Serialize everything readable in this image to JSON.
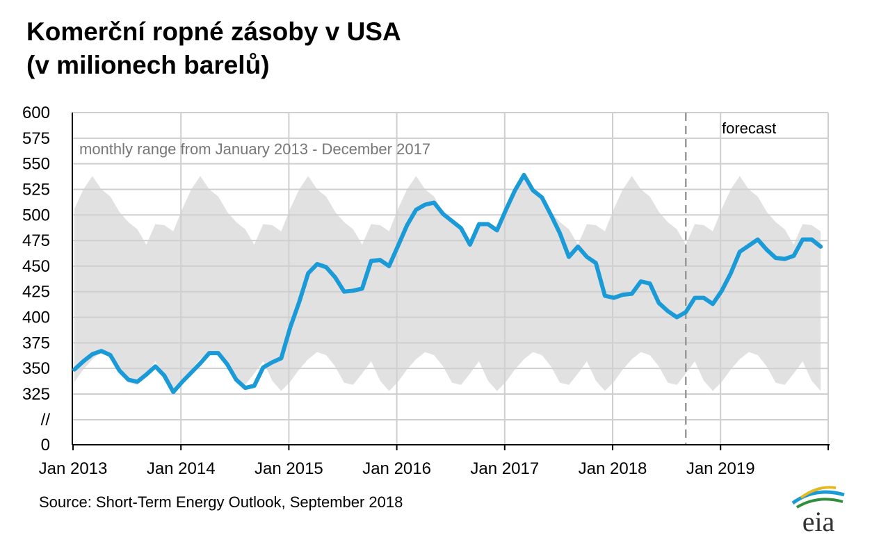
{
  "title_line1": "Komerční ropné zásoby v USA",
  "title_line2": "(v milionech barelů)",
  "source": "Source: Short-Term Energy Outlook, September 2018",
  "logo_text": "eia",
  "colors": {
    "line": "#1a9ad6",
    "band": "#e1e1e1",
    "grid": "#cfcfcf",
    "forecast_divider": "#999999"
  },
  "chart_data": {
    "type": "line",
    "y_tick_labels": [
      "600",
      "575",
      "550",
      "525",
      "500",
      "475",
      "450",
      "425",
      "400",
      "375",
      "350",
      "325",
      "//",
      "0"
    ],
    "y_ticks": [
      600,
      575,
      550,
      525,
      500,
      475,
      450,
      425,
      400,
      375,
      350,
      325
    ],
    "ylim": [
      325,
      600
    ],
    "axis_break_label": "//",
    "axis_zero_label": "0",
    "x_tick_labels": [
      "Jan 2013",
      "Jan 2014",
      "Jan 2015",
      "Jan 2016",
      "Jan 2017",
      "Jan 2018",
      "Jan 2019"
    ],
    "band_label": "monthly range from January 2013 - December 2017",
    "forecast_label": "forecast",
    "forecast_start": "2018-09",
    "band": {
      "x_month": [
        "Jan",
        "Feb",
        "Mar",
        "Apr",
        "May",
        "Jun",
        "Jul",
        "Aug",
        "Sep",
        "Oct",
        "Nov",
        "Dec"
      ],
      "max": [
        506,
        525,
        538,
        525,
        518,
        503,
        493,
        486,
        471,
        491,
        490,
        484
      ],
      "min": [
        337,
        349,
        359,
        366,
        363,
        352,
        336,
        334,
        345,
        357,
        338,
        328
      ]
    },
    "series": [
      {
        "start": "2013-01",
        "values": [
          349,
          357,
          364,
          367,
          363,
          348,
          339,
          337,
          344,
          352,
          343,
          327,
          337,
          346,
          355,
          365,
          365,
          354,
          339,
          331,
          333,
          351,
          356,
          360,
          390,
          415,
          443,
          452,
          449,
          439,
          425,
          426,
          428,
          455,
          456,
          450,
          470,
          490,
          505,
          510,
          512,
          501,
          494,
          487,
          471,
          491,
          491,
          485,
          505,
          524,
          539,
          524,
          517,
          500,
          482,
          459,
          469,
          459,
          453,
          421,
          419,
          422,
          423,
          435,
          433,
          414,
          406,
          400,
          405,
          419,
          419,
          413,
          426,
          443,
          464,
          470,
          476,
          466,
          458,
          457,
          460,
          476,
          476,
          469
        ]
      }
    ]
  }
}
